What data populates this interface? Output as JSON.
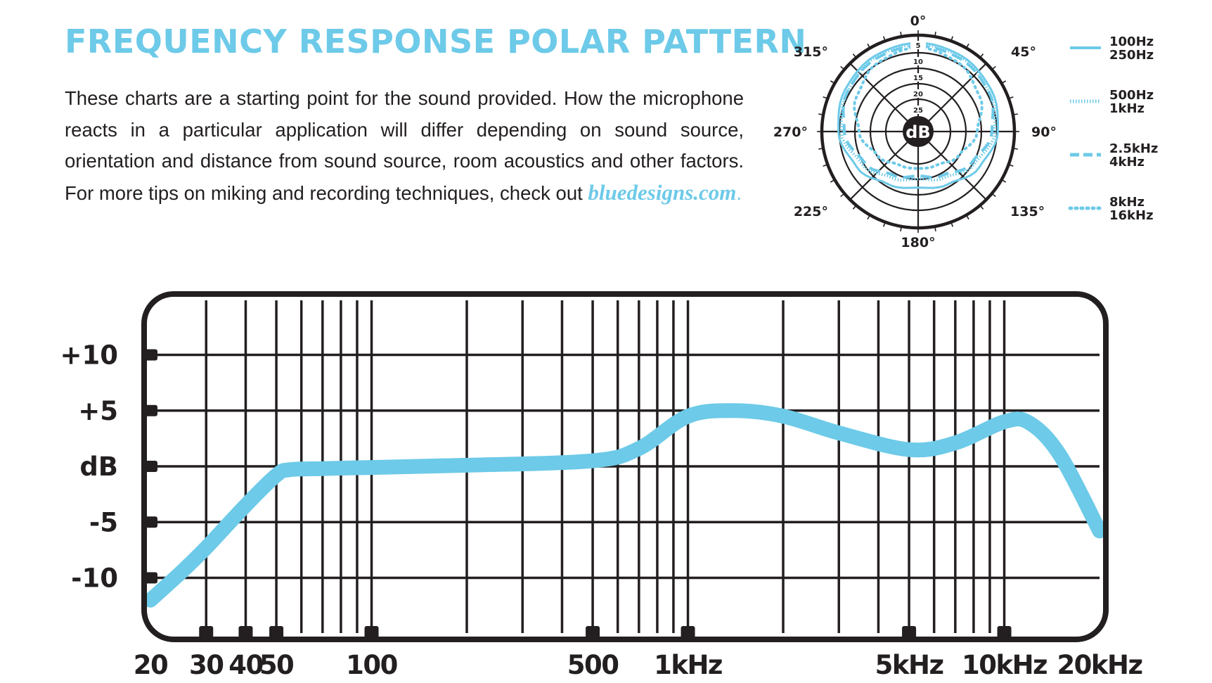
{
  "title": "FREQUENCY RESPONSE POLAR PATTERN",
  "intro": {
    "text": "These charts are a starting point for the sound provided. How the microphone reacts in a particular application will differ depending on sound source, orientation and distance from sound source, room acoustics and other factors. For more tips on miking and recording techniques, check out ",
    "link": "bluedesigns.com",
    "end": "."
  },
  "colors": {
    "accent": "#6dcae8",
    "ink": "#231f20",
    "background": "#ffffff"
  },
  "chart_data": [
    {
      "type": "polar",
      "center_label": "dB",
      "angle_labels": [
        "0°",
        "45°",
        "90°",
        "135°",
        "180°",
        "225°",
        "270°",
        "315°"
      ],
      "ring_labels": [
        "5",
        "10",
        "15",
        "20",
        "25"
      ],
      "legend": [
        {
          "labels": [
            "100Hz",
            "250Hz"
          ],
          "style": "solid"
        },
        {
          "labels": [
            "500Hz",
            "1kHz"
          ],
          "style": "fine-dotted"
        },
        {
          "labels": [
            "2.5kHz",
            "4kHz"
          ],
          "style": "dashed"
        },
        {
          "labels": [
            "8kHz",
            "16kHz"
          ],
          "style": "dotted"
        }
      ],
      "series": [
        {
          "style": "solid",
          "angles": [
            0,
            30,
            60,
            90,
            120,
            150,
            180,
            210,
            240,
            270,
            300,
            330
          ],
          "db_below_max": [
            0,
            0.5,
            1.5,
            3,
            6,
            9.5,
            11,
            9.5,
            6,
            3,
            1.5,
            0.5
          ]
        },
        {
          "style": "fine-dotted",
          "angles": [
            0,
            30,
            60,
            90,
            120,
            150,
            180,
            210,
            240,
            270,
            300,
            330
          ],
          "db_below_max": [
            0.5,
            1,
            2.5,
            4,
            8,
            12,
            14,
            12,
            8,
            4,
            2.5,
            1
          ]
        },
        {
          "style": "dashed",
          "angles": [
            0,
            30,
            60,
            90,
            120,
            150,
            180,
            210,
            240,
            270,
            300,
            330
          ],
          "db_below_max": [
            1,
            1.5,
            2.5,
            5,
            9,
            13,
            15,
            13,
            9,
            5,
            2.5,
            1.5
          ]
        },
        {
          "style": "dotted",
          "angles": [
            0,
            30,
            60,
            90,
            120,
            150,
            180,
            210,
            240,
            270,
            300,
            330
          ],
          "db_below_max": [
            1.5,
            3,
            6,
            10,
            14,
            17,
            17.5,
            17,
            14,
            10,
            6,
            3
          ]
        }
      ]
    },
    {
      "type": "line",
      "xscale": "log",
      "xlim": [
        20,
        20000
      ],
      "ylim": [
        -15,
        15
      ],
      "ylabel": "dB",
      "y_ticks": [
        {
          "value": 10,
          "label": "+10"
        },
        {
          "value": 5,
          "label": "+5"
        },
        {
          "value": 0,
          "label": "dB"
        },
        {
          "value": -5,
          "label": "-5"
        },
        {
          "value": -10,
          "label": "-10"
        }
      ],
      "x_ticks": [
        {
          "value": 20,
          "label": "20"
        },
        {
          "value": 30,
          "label": "30"
        },
        {
          "value": 40,
          "label": "40"
        },
        {
          "value": 50,
          "label": "50"
        },
        {
          "value": 100,
          "label": "100"
        },
        {
          "value": 500,
          "label": "500"
        },
        {
          "value": 1000,
          "label": "1kHz"
        },
        {
          "value": 5000,
          "label": "5kHz"
        },
        {
          "value": 10000,
          "label": "10kHz"
        },
        {
          "value": 20000,
          "label": "20kHz"
        }
      ],
      "grid_frequencies": [
        20,
        30,
        40,
        50,
        60,
        70,
        80,
        90,
        100,
        200,
        300,
        400,
        500,
        600,
        700,
        800,
        900,
        1000,
        2000,
        3000,
        4000,
        5000,
        6000,
        7000,
        8000,
        9000,
        10000,
        20000
      ],
      "grid": true,
      "series": [
        {
          "x": [
            20,
            25,
            30,
            40,
            50,
            55,
            70,
            100,
            200,
            500,
            700,
            1000,
            1400,
            2000,
            3000,
            5000,
            7000,
            10000,
            12000,
            15000,
            20000
          ],
          "y": [
            -12,
            -9.5,
            -7.3,
            -3.5,
            -0.8,
            -0.3,
            -0.2,
            -0.1,
            0.1,
            0.5,
            1.6,
            4.5,
            5,
            4.5,
            3,
            1.5,
            2.1,
            4,
            3.9,
            1,
            -5.8
          ]
        }
      ]
    }
  ]
}
